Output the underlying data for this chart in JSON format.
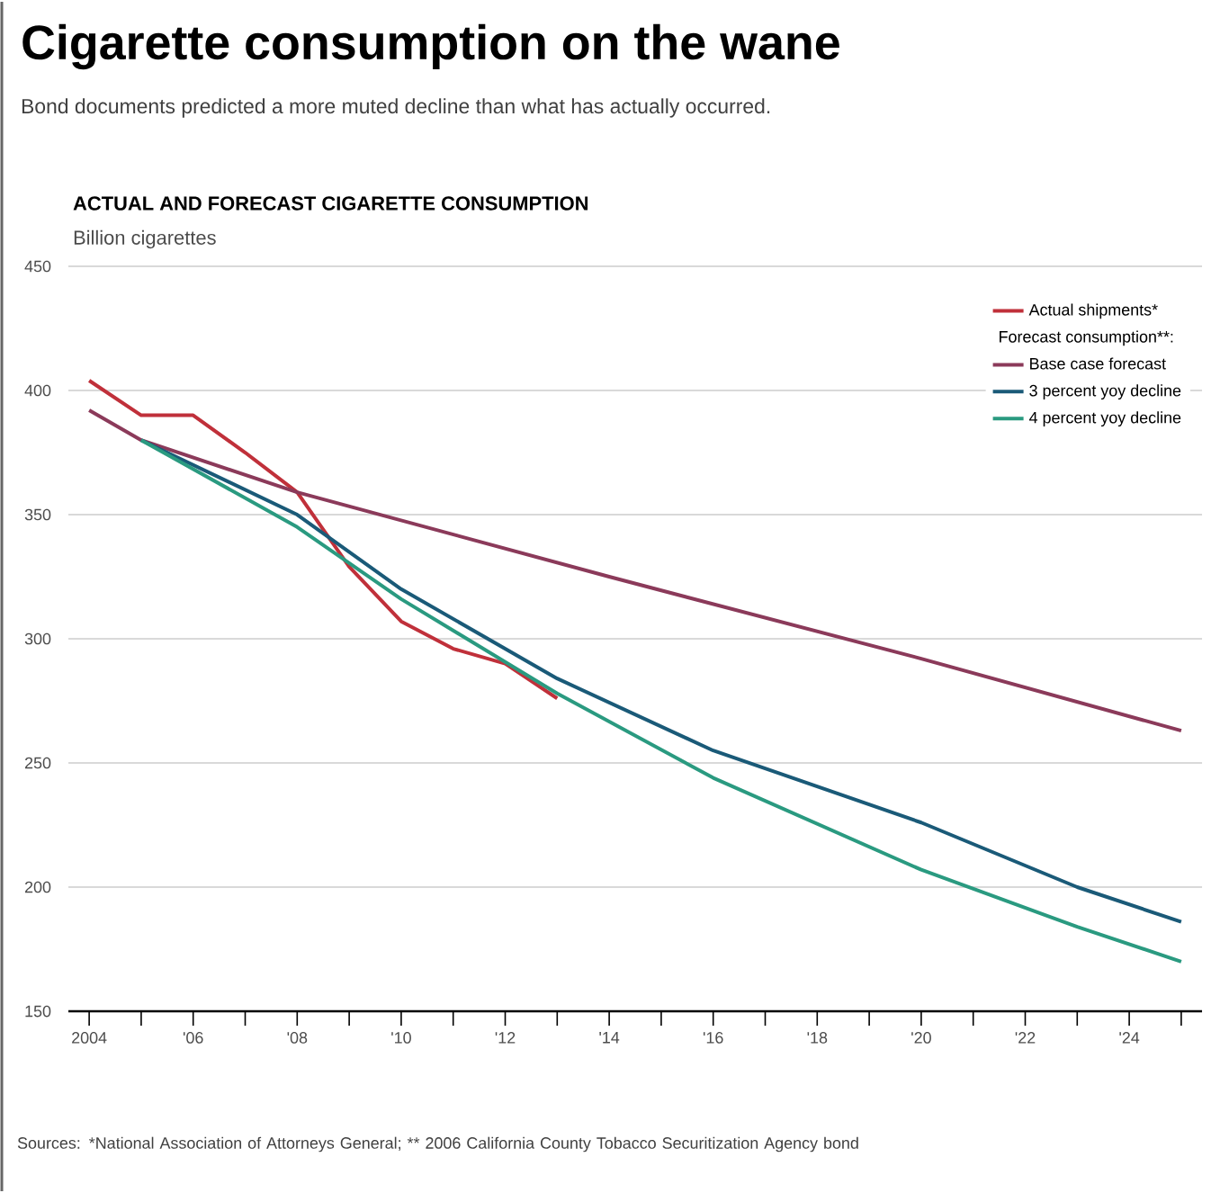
{
  "chart_data": {
    "type": "line",
    "title": "Cigarette consumption on the wane",
    "subtitle": "Bond documents predicted a more muted decline than what has actually occurred.",
    "annotations": [
      "ACTUAL AND FORECAST CIGARETTE CONSUMPTION",
      "Sources: *National Association of Attorneys General; ** 2006 California County Tobacco Securitization Agency bond"
    ],
    "ylabel": "Billion cigarettes",
    "legend_title": "Forecast consumption**:",
    "series": [
      {
        "name": "Actual shipments*",
        "color": "#c0303a",
        "x": [
          2004,
          2005,
          2006,
          2007,
          2008,
          2009,
          2010,
          2011,
          2012,
          2013
        ],
        "values": [
          404,
          390,
          390,
          375,
          359,
          329,
          307,
          296,
          290,
          276
        ]
      },
      {
        "name": "Base case forecast",
        "color": "#8b3a5a",
        "x": [
          2004,
          2005,
          2008,
          2014,
          2020,
          2025
        ],
        "values": [
          392,
          380,
          359,
          325,
          292,
          263
        ]
      },
      {
        "name": "3 percent yoy decline",
        "color": "#1a5a78",
        "x": [
          2005,
          2008,
          2010,
          2013,
          2016,
          2020,
          2023,
          2025
        ],
        "values": [
          380,
          350,
          320,
          284,
          255,
          226,
          200,
          186
        ]
      },
      {
        "name": "4 percent yoy decline",
        "color": "#2a9a80",
        "x": [
          2005,
          2008,
          2010,
          2013,
          2016,
          2020,
          2023,
          2025
        ],
        "values": [
          380,
          345,
          316,
          278,
          244,
          207,
          184,
          170
        ]
      }
    ],
    "xlim": [
      2003.6,
      2025.4
    ],
    "ylim": [
      150,
      450
    ],
    "xticks": [
      {
        "value": 2004,
        "label": "2004"
      },
      {
        "value": 2005,
        "label": null
      },
      {
        "value": 2006,
        "label": "'06"
      },
      {
        "value": 2007,
        "label": null
      },
      {
        "value": 2008,
        "label": "'08"
      },
      {
        "value": 2009,
        "label": null
      },
      {
        "value": 2010,
        "label": "'10"
      },
      {
        "value": 2011,
        "label": null
      },
      {
        "value": 2012,
        "label": "'12"
      },
      {
        "value": 2013,
        "label": null
      },
      {
        "value": 2014,
        "label": "'14"
      },
      {
        "value": 2015,
        "label": null
      },
      {
        "value": 2016,
        "label": "'16"
      },
      {
        "value": 2017,
        "label": null
      },
      {
        "value": 2018,
        "label": "'18"
      },
      {
        "value": 2019,
        "label": null
      },
      {
        "value": 2020,
        "label": "'20"
      },
      {
        "value": 2021,
        "label": null
      },
      {
        "value": 2022,
        "label": "'22"
      },
      {
        "value": 2023,
        "label": null
      },
      {
        "value": 2024,
        "label": "'24"
      },
      {
        "value": 2025,
        "label": null
      }
    ],
    "yticks": [
      150,
      200,
      250,
      300,
      350,
      400,
      450
    ],
    "grid": "y",
    "legend": "top right",
    "marker": "none",
    "line_style": "solid"
  }
}
